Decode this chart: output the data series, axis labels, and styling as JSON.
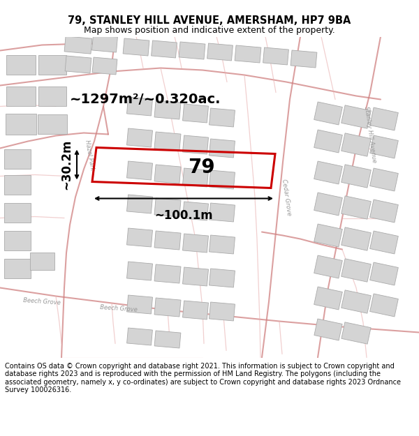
{
  "title": "79, STANLEY HILL AVENUE, AMERSHAM, HP7 9BA",
  "subtitle": "Map shows position and indicative extent of the property.",
  "footer": "Contains OS data © Crown copyright and database right 2021. This information is subject to Crown copyright and database rights 2023 and is reproduced with the permission of HM Land Registry. The polygons (including the associated geometry, namely x, y co-ordinates) are subject to Crown copyright and database rights 2023 Ordnance Survey 100026316.",
  "area_label": "~1297m²/~0.320ac.",
  "width_label": "~100.1m",
  "height_label": "~30.2m",
  "number_label": "79",
  "bg_color": "#ffffff",
  "map_bg": "#f2f2f2",
  "road_color_heavy": "#d08080",
  "road_color_light": "#e8b0b0",
  "building_fill": "#d4d4d4",
  "building_edge": "#aaaaaa",
  "plot_rect_color": "#cc0000",
  "title_fontsize": 10.5,
  "subtitle_fontsize": 9,
  "footer_fontsize": 7,
  "area_fontsize": 14,
  "number_fontsize": 20,
  "dim_fontsize": 12,
  "road_label_fontsize": 6,
  "road_label_color": "#999999"
}
